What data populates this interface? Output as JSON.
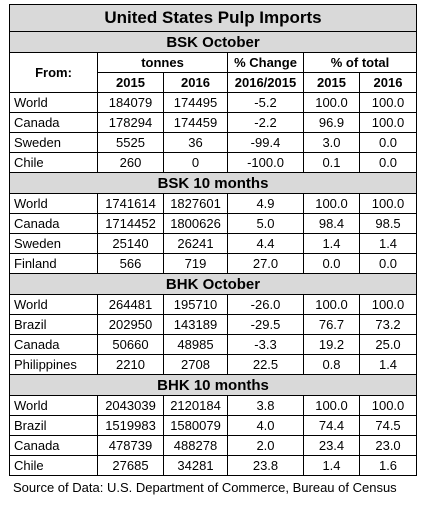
{
  "title": "United States Pulp Imports",
  "header": {
    "from": "From:",
    "tonnes": "tonnes",
    "change": "% Change",
    "share": "% of total",
    "years": [
      "2015",
      "2016",
      "2016/2015",
      "2015",
      "2016"
    ]
  },
  "sections": [
    {
      "title": "BSK October",
      "rows": [
        [
          "World",
          "184079",
          "174495",
          "-5.2",
          "100.0",
          "100.0"
        ],
        [
          "Canada",
          "178294",
          "174459",
          "-2.2",
          "96.9",
          "100.0"
        ],
        [
          "Sweden",
          "5525",
          "36",
          "-99.4",
          "3.0",
          "0.0"
        ],
        [
          "Chile",
          "260",
          "0",
          "-100.0",
          "0.1",
          "0.0"
        ]
      ]
    },
    {
      "title": "BSK 10 months",
      "rows": [
        [
          "World",
          "1741614",
          "1827601",
          "4.9",
          "100.0",
          "100.0"
        ],
        [
          "Canada",
          "1714452",
          "1800626",
          "5.0",
          "98.4",
          "98.5"
        ],
        [
          "Sweden",
          "25140",
          "26241",
          "4.4",
          "1.4",
          "1.4"
        ],
        [
          "Finland",
          "566",
          "719",
          "27.0",
          "0.0",
          "0.0"
        ]
      ]
    },
    {
      "title": "BHK October",
      "rows": [
        [
          "World",
          "264481",
          "195710",
          "-26.0",
          "100.0",
          "100.0"
        ],
        [
          "Brazil",
          "202950",
          "143189",
          "-29.5",
          "76.7",
          "73.2"
        ],
        [
          "Canada",
          "50660",
          "48985",
          "-3.3",
          "19.2",
          "25.0"
        ],
        [
          "Philippines",
          "2210",
          "2708",
          "22.5",
          "0.8",
          "1.4"
        ]
      ]
    },
    {
      "title": "BHK 10 months",
      "rows": [
        [
          "World",
          "2043039",
          "2120184",
          "3.8",
          "100.0",
          "100.0"
        ],
        [
          "Brazil",
          "1519983",
          "1580079",
          "4.0",
          "74.4",
          "74.5"
        ],
        [
          "Canada",
          "478739",
          "488278",
          "2.0",
          "23.4",
          "23.0"
        ],
        [
          "Chile",
          "27685",
          "34281",
          "23.8",
          "1.4",
          "1.6"
        ]
      ]
    }
  ],
  "source": "Source of Data: U.S. Department of Commerce, Bureau of Census"
}
